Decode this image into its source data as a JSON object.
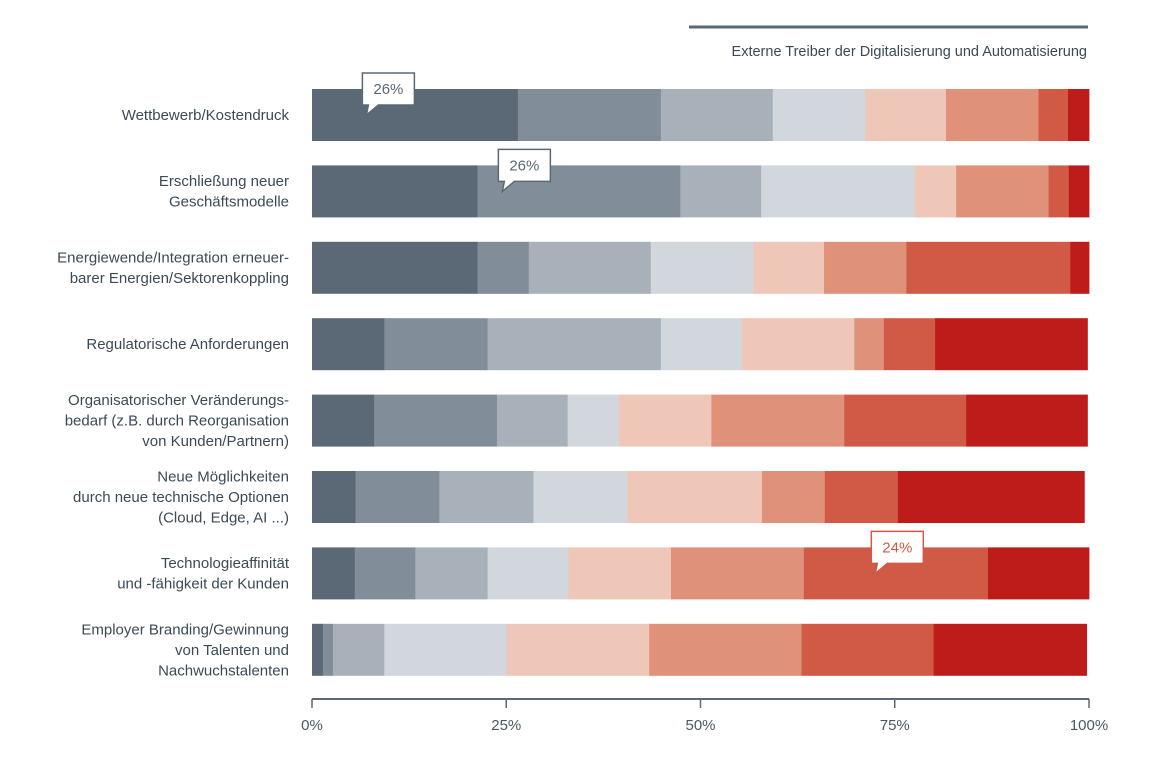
{
  "chart_data": {
    "type": "bar",
    "orientation": "horizontal",
    "stacked": true,
    "title": "Externe Treiber der Digitalisierung und Automatisierung",
    "xlabel": "",
    "ylabel": "",
    "xlim": [
      0,
      100
    ],
    "x_ticks": [
      "0%",
      "25%",
      "50%",
      "75%",
      "100%"
    ],
    "grid": false,
    "legend": "none",
    "categories": [
      [
        "Wettbewerb/Kostendruck"
      ],
      [
        "Erschließung neuer",
        "Geschäftsmodelle"
      ],
      [
        "Energiewende/Integration erneuer-",
        "barer Energien/Sektorenkoppling"
      ],
      [
        "Regulatorische Anforderungen"
      ],
      [
        "Organisatorischer Veränderungs-",
        "bedarf (z.B. durch Reorganisation",
        "von Kunden/Partnern)"
      ],
      [
        "Neue Möglichkeiten",
        "durch neue technische Optionen",
        "(Cloud, Edge, AI ...)"
      ],
      [
        "Technologieaffinität",
        "und -fähigkeit der Kunden"
      ],
      [
        "Employer Branding/Gewinnung",
        "von Talenten und",
        "Nachwuchstalenten"
      ]
    ],
    "series_colors": [
      "#5a6975",
      "#818e99",
      "#a8b1b9",
      "#d1d7dd",
      "#efc7b9",
      "#e0917a",
      "#d05a45",
      "#be1b1b"
    ],
    "series": [
      {
        "values": [
          26.5,
          21.3,
          21.3,
          9.3,
          8.0,
          5.6,
          5.5,
          1.4
        ]
      },
      {
        "values": [
          18.4,
          26.1,
          6.6,
          13.3,
          15.8,
          10.8,
          7.8,
          1.3
        ]
      },
      {
        "values": [
          14.4,
          10.4,
          15.7,
          22.3,
          9.1,
          12.1,
          9.3,
          6.6
        ]
      },
      {
        "values": [
          11.9,
          19.8,
          13.2,
          10.4,
          6.6,
          12.1,
          10.4,
          15.7
        ]
      },
      {
        "values": [
          10.4,
          5.3,
          9.1,
          14.5,
          11.9,
          17.3,
          13.2,
          18.4
        ]
      },
      {
        "values": [
          11.9,
          11.9,
          10.6,
          3.8,
          17.1,
          8.1,
          17.1,
          19.6
        ]
      },
      {
        "values": [
          3.8,
          2.6,
          21.1,
          6.6,
          15.7,
          9.4,
          23.7,
          17.0
        ]
      },
      {
        "values": [
          2.7,
          2.6,
          2.4,
          19.6,
          15.6,
          24.0,
          13.0,
          19.7
        ]
      }
    ],
    "callouts": [
      {
        "label": "26%",
        "category_index": 0,
        "series_index": 0,
        "anchor_value": 7.0,
        "color": "#5a6975"
      },
      {
        "label": "26%",
        "category_index": 1,
        "series_index": 1,
        "anchor_value": 24.5,
        "color": "#5a6975"
      },
      {
        "label": "24%",
        "category_index": 6,
        "series_index": 6,
        "anchor_value": 72.5,
        "color": "#d05a45"
      }
    ]
  }
}
